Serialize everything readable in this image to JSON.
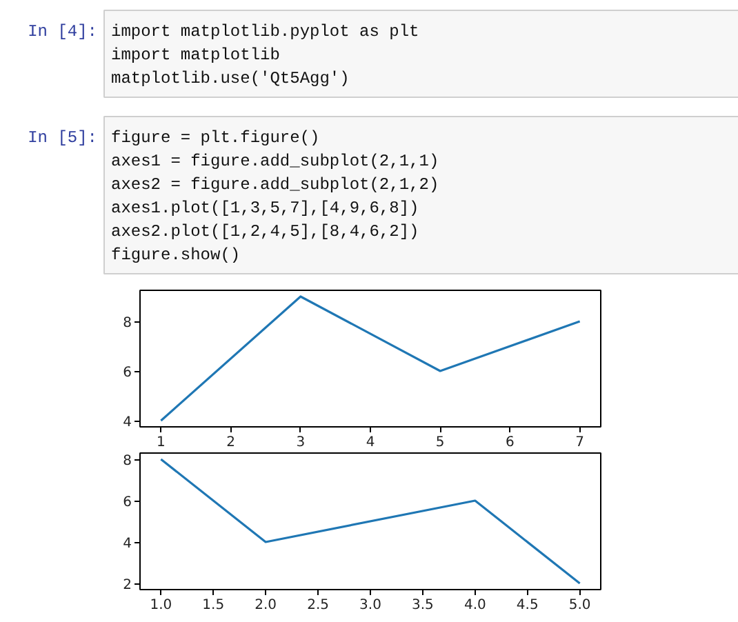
{
  "chart_data": [
    {
      "type": "line",
      "x": [
        1,
        3,
        5,
        7
      ],
      "values": [
        4,
        9,
        6,
        8
      ],
      "color": "#1f77b4",
      "xlim": [
        0.7,
        7.3
      ],
      "ylim": [
        3.75,
        9.25
      ],
      "xticks": [
        1,
        2,
        3,
        4,
        5,
        6,
        7
      ],
      "yticks": [
        4,
        6,
        8
      ],
      "annotations": [
        "In [4]:",
        "import matplotlib.pyplot as plt\nimport matplotlib\nmatplotlib.use('Qt5Agg')",
        "In [5]:",
        "figure = plt.figure()\naxes1 = figure.add_subplot(2,1,1)\naxes2 = figure.add_subplot(2,1,2)\naxes1.plot([1,3,5,7],[4,9,6,8])\naxes2.plot([1,2,4,5],[8,4,6,2])\nfigure.show()"
      ]
    },
    {
      "type": "line",
      "x": [
        1,
        2,
        4,
        5
      ],
      "values": [
        8,
        4,
        6,
        2
      ],
      "color": "#1f77b4",
      "xlim": [
        0.8,
        5.2
      ],
      "ylim": [
        1.7,
        8.3
      ],
      "xticks": [
        {
          "value": 1,
          "label": "1.0"
        },
        {
          "value": 1.5,
          "label": "1.5"
        },
        {
          "value": 2,
          "label": "2.0"
        },
        {
          "value": 2.5,
          "label": "2.5"
        },
        {
          "value": 3,
          "label": "3.0"
        },
        {
          "value": 3.5,
          "label": "3.5"
        },
        {
          "value": 4,
          "label": "4.0"
        },
        {
          "value": 4.5,
          "label": "4.5"
        },
        {
          "value": 5,
          "label": "5.0"
        }
      ],
      "yticks": [
        2,
        4,
        6,
        8
      ]
    }
  ]
}
